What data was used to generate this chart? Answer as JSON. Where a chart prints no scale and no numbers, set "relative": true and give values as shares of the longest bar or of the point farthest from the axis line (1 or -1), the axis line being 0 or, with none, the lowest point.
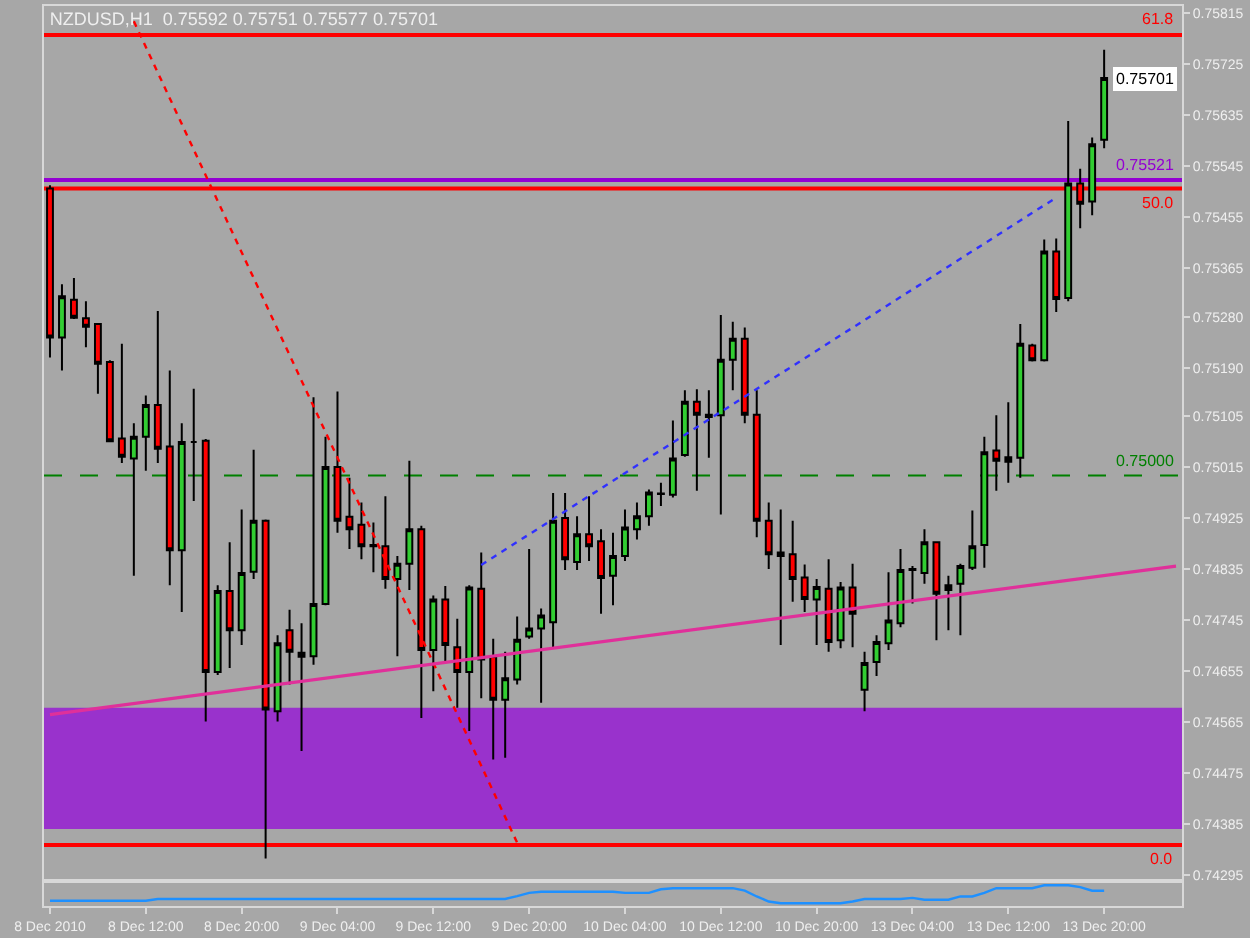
{
  "chart_data": [
    {
      "type": "candlestick",
      "title": "NZDUSD,H1  0.75592 0.75751 0.75577 0.75701",
      "categories": [
        "8 Dec 2010",
        null,
        null,
        null,
        null,
        null,
        null,
        null,
        "8 Dec 12:00",
        null,
        null,
        null,
        null,
        null,
        null,
        null,
        "8 Dec 20:00",
        null,
        null,
        null,
        null,
        null,
        null,
        null,
        "9 Dec 04:00",
        null,
        null,
        null,
        null,
        null,
        null,
        null,
        "9 Dec 12:00",
        null,
        null,
        null,
        null,
        null,
        null,
        null,
        "9 Dec 20:00",
        null,
        null,
        null,
        null,
        null,
        null,
        null,
        "10 Dec 04:00",
        null,
        null,
        null,
        null,
        null,
        null,
        null,
        "10 Dec 12:00",
        null,
        null,
        null,
        null,
        null,
        null,
        null,
        "10 Dec 20:00",
        null,
        null,
        null,
        null,
        null,
        null,
        null,
        "13 Dec 04:00",
        null,
        null,
        null,
        null,
        null,
        null,
        null,
        "13 Dec 12:00",
        null,
        null,
        null,
        null,
        null,
        null,
        null,
        "13 Dec 20:00",
        null,
        null,
        null,
        null,
        null,
        null
      ],
      "ohlc": [
        [
          0.75506,
          0.75512,
          0.75208,
          0.75243
        ],
        [
          0.75243,
          0.75337,
          0.75185,
          0.75316
        ],
        [
          0.7531,
          0.75348,
          0.75276,
          0.75278
        ],
        [
          0.75277,
          0.75307,
          0.75226,
          0.75262
        ],
        [
          0.75267,
          0.75269,
          0.75144,
          0.75197
        ],
        [
          0.752,
          0.75203,
          0.75059,
          0.7506
        ],
        [
          0.75065,
          0.75232,
          0.75022,
          0.75033
        ],
        [
          0.7503,
          0.75092,
          0.74823,
          0.75068
        ],
        [
          0.75068,
          0.75141,
          0.75008,
          0.75124
        ],
        [
          0.75124,
          0.7529,
          0.75022,
          0.75047
        ],
        [
          0.75051,
          0.75185,
          0.74806,
          0.74868
        ],
        [
          0.74868,
          0.75092,
          0.74759,
          0.75059
        ],
        [
          0.75059,
          0.75153,
          0.74955,
          0.75059
        ],
        [
          0.75061,
          0.75064,
          0.74566,
          0.74653
        ],
        [
          0.74653,
          0.74806,
          0.74648,
          0.74796
        ],
        [
          0.74796,
          0.74882,
          0.7466,
          0.74727
        ],
        [
          0.74727,
          0.7494,
          0.74701,
          0.74828
        ],
        [
          0.7483,
          0.75045,
          0.74817,
          0.7492
        ],
        [
          0.7492,
          0.74922,
          0.74324,
          0.74587
        ],
        [
          0.74584,
          0.74718,
          0.74566,
          0.74704
        ],
        [
          0.74727,
          0.74763,
          0.74631,
          0.74689
        ],
        [
          0.74687,
          0.74739,
          0.74514,
          0.7468
        ],
        [
          0.74681,
          0.75138,
          0.74666,
          0.74773
        ],
        [
          0.74773,
          0.75068,
          0.74771,
          0.75015
        ],
        [
          0.75015,
          0.75148,
          0.74899,
          0.7492
        ],
        [
          0.74927,
          0.74996,
          0.7487,
          0.74905
        ],
        [
          0.74913,
          0.74952,
          0.74852,
          0.74875
        ],
        [
          0.74877,
          0.74917,
          0.74829,
          0.74875
        ],
        [
          0.74875,
          0.74963,
          0.748,
          0.74817
        ],
        [
          0.74817,
          0.74858,
          0.74681,
          0.74844
        ],
        [
          0.74844,
          0.75026,
          0.74798,
          0.74905
        ],
        [
          0.74905,
          0.74911,
          0.74572,
          0.74692
        ],
        [
          0.74692,
          0.74788,
          0.74619,
          0.74781
        ],
        [
          0.74781,
          0.74805,
          0.74671,
          0.74701
        ],
        [
          0.74697,
          0.74747,
          0.7459,
          0.74653
        ],
        [
          0.74653,
          0.74806,
          0.74549,
          0.74802
        ],
        [
          0.748,
          0.74864,
          0.74607,
          0.74675
        ],
        [
          0.7468,
          0.74712,
          0.74499,
          0.74604
        ],
        [
          0.74604,
          0.74689,
          0.74502,
          0.74642
        ],
        [
          0.7464,
          0.74751,
          0.74631,
          0.7471
        ],
        [
          0.74716,
          0.7487,
          0.74712,
          0.7473
        ],
        [
          0.7473,
          0.74765,
          0.74599,
          0.74753
        ],
        [
          0.74741,
          0.74969,
          0.74695,
          0.7492
        ],
        [
          0.74925,
          0.74969,
          0.74833,
          0.74852
        ],
        [
          0.74847,
          0.74928,
          0.74833,
          0.74896
        ],
        [
          0.74896,
          0.74963,
          0.74849,
          0.74875
        ],
        [
          0.74884,
          0.74905,
          0.74756,
          0.74819
        ],
        [
          0.74823,
          0.74899,
          0.74771,
          0.74858
        ],
        [
          0.74858,
          0.7494,
          0.74849,
          0.74908
        ],
        [
          0.74905,
          0.74952,
          0.74887,
          0.74928
        ],
        [
          0.74928,
          0.74975,
          0.74911,
          0.7497
        ],
        [
          0.74967,
          0.74987,
          0.74946,
          0.74968
        ],
        [
          0.74966,
          0.75097,
          0.74961,
          0.7503
        ],
        [
          0.75036,
          0.7515,
          0.75033,
          0.7513
        ],
        [
          0.7513,
          0.75152,
          0.74973,
          0.75107
        ],
        [
          0.75107,
          0.7515,
          0.75031,
          0.75103
        ],
        [
          0.75106,
          0.75283,
          0.74931,
          0.75204
        ],
        [
          0.75204,
          0.75271,
          0.7515,
          0.75241
        ],
        [
          0.75241,
          0.75261,
          0.75092,
          0.75107
        ],
        [
          0.75107,
          0.7515,
          0.74891,
          0.7492
        ],
        [
          0.7492,
          0.74952,
          0.74835,
          0.74861
        ],
        [
          0.74864,
          0.7494,
          0.74701,
          0.74858
        ],
        [
          0.74861,
          0.7492,
          0.74777,
          0.74817
        ],
        [
          0.7482,
          0.74843,
          0.74759,
          0.74782
        ],
        [
          0.74781,
          0.74817,
          0.74701,
          0.74803
        ],
        [
          0.748,
          0.74852,
          0.74689,
          0.74706
        ],
        [
          0.74709,
          0.74812,
          0.74695,
          0.74802
        ],
        [
          0.74802,
          0.74844,
          0.74697,
          0.74756
        ],
        [
          0.74622,
          0.74689,
          0.74584,
          0.74669
        ],
        [
          0.74671,
          0.74718,
          0.74646,
          0.74706
        ],
        [
          0.74704,
          0.74829,
          0.74692,
          0.74744
        ],
        [
          0.74739,
          0.7487,
          0.74732,
          0.74833
        ],
        [
          0.74833,
          0.7484,
          0.74774,
          0.74835
        ],
        [
          0.74828,
          0.74905,
          0.74809,
          0.74882
        ],
        [
          0.74882,
          0.74884,
          0.74709,
          0.74791
        ],
        [
          0.74798,
          0.74823,
          0.74727,
          0.74806
        ],
        [
          0.74809,
          0.74844,
          0.74718,
          0.7484
        ],
        [
          0.74837,
          0.74938,
          0.74833,
          0.74875
        ],
        [
          0.74877,
          0.75068,
          0.74837,
          0.75041
        ],
        [
          0.75044,
          0.75106,
          0.74973,
          0.75026
        ],
        [
          0.75024,
          0.75129,
          0.74987,
          0.75032
        ],
        [
          0.75031,
          0.75267,
          0.74996,
          0.75232
        ],
        [
          0.75229,
          0.75232,
          0.75201,
          0.75203
        ],
        [
          0.75203,
          0.75416,
          0.75201,
          0.75395
        ],
        [
          0.75395,
          0.75418,
          0.75288,
          0.75311
        ],
        [
          0.75313,
          0.75625,
          0.75307,
          0.75515
        ],
        [
          0.75515,
          0.75541,
          0.75436,
          0.75479
        ],
        [
          0.75483,
          0.75596,
          0.75459,
          0.75584
        ],
        [
          0.75592,
          0.75751,
          0.75577,
          0.75701
        ],
        null,
        null,
        null,
        null,
        null,
        null
      ],
      "colors": [
        "#ff0000",
        "#32cd32",
        "#ff0000",
        "#ff0000",
        "#ff0000",
        "#ff0000",
        "#ff0000",
        "#32cd32",
        "#32cd32",
        "#ff0000",
        "#ff0000",
        "#32cd32",
        "#000000",
        "#ff0000",
        "#32cd32",
        "#ff0000",
        "#32cd32",
        "#32cd32",
        "#ff0000",
        "#32cd32",
        "#ff0000",
        "#000000",
        "#32cd32",
        "#32cd32",
        "#ff0000",
        "#ff0000",
        "#ff0000",
        "#000000",
        "#ff0000",
        "#32cd32",
        "#32cd32",
        "#ff0000",
        "#32cd32",
        "#ff0000",
        "#ff0000",
        "#32cd32",
        "#ff0000",
        "#ff0000",
        "#32cd32",
        "#32cd32",
        "#32cd32",
        "#32cd32",
        "#32cd32",
        "#ff0000",
        "#32cd32",
        "#ff0000",
        "#ff0000",
        "#32cd32",
        "#32cd32",
        "#32cd32",
        "#32cd32",
        "#000000",
        "#32cd32",
        "#32cd32",
        "#ff0000",
        "#000000",
        "#32cd32",
        "#32cd32",
        "#ff0000",
        "#ff0000",
        "#ff0000",
        "#000000",
        "#ff0000",
        "#ff0000",
        "#32cd32",
        "#ff0000",
        "#32cd32",
        "#ff0000",
        "#32cd32",
        "#32cd32",
        "#32cd32",
        "#32cd32",
        "#000000",
        "#32cd32",
        "#ff0000",
        "#000000",
        "#32cd32",
        "#32cd32",
        "#32cd32",
        "#ff0000",
        "#000000",
        "#32cd32",
        "#ff0000",
        "#32cd32",
        "#ff0000",
        "#32cd32",
        "#ff0000",
        "#32cd32",
        "#32cd32",
        null,
        null,
        null,
        null,
        null,
        null
      ],
      "series": [
        {
          "type": "line",
          "color": "#ff0000",
          "line_style": "dotted",
          "values": [
            null,
            null,
            null,
            null,
            null,
            null,
            null,
            0.75801,
            null,
            null,
            null,
            null,
            null,
            null,
            null,
            null,
            null,
            null,
            null,
            null,
            null,
            null,
            null,
            null,
            null,
            null,
            null,
            null,
            null,
            null,
            null,
            null,
            null,
            null,
            null,
            null,
            null,
            null,
            null,
            0.74352,
            null,
            null,
            null,
            null,
            null,
            null,
            null,
            null,
            null,
            null,
            null,
            null,
            null,
            null,
            null,
            null,
            null,
            null,
            null,
            null,
            null,
            null,
            null,
            null,
            null,
            null,
            null,
            null,
            null,
            null,
            null,
            null,
            null,
            null,
            null,
            null,
            null,
            null,
            null,
            null,
            null,
            null,
            null,
            null,
            null,
            null,
            null,
            null,
            null,
            null,
            null,
            null,
            null,
            null,
            null
          ]
        },
        {
          "type": "line",
          "color": "#3030ff",
          "line_style": "dotted",
          "values": [
            null,
            null,
            null,
            null,
            null,
            null,
            null,
            null,
            null,
            null,
            null,
            null,
            null,
            null,
            null,
            null,
            null,
            null,
            null,
            null,
            null,
            null,
            null,
            null,
            null,
            null,
            null,
            null,
            null,
            null,
            null,
            null,
            null,
            null,
            null,
            null,
            0.74842,
            null,
            null,
            null,
            null,
            null,
            null,
            null,
            null,
            null,
            null,
            null,
            null,
            null,
            null,
            null,
            null,
            null,
            null,
            null,
            null,
            null,
            null,
            null,
            null,
            null,
            null,
            null,
            null,
            null,
            null,
            null,
            null,
            null,
            null,
            null,
            null,
            null,
            null,
            null,
            null,
            null,
            null,
            null,
            null,
            null,
            null,
            null,
            0.7549,
            null,
            null,
            null,
            null,
            null,
            null,
            null,
            null,
            null,
            null
          ]
        },
        {
          "type": "line",
          "color": "#e0309a",
          "line_style": "solid",
          "values": [
            0.74578,
            null,
            null,
            null,
            null,
            null,
            null,
            null,
            null,
            null,
            null,
            null,
            null,
            null,
            null,
            null,
            null,
            null,
            null,
            null,
            null,
            null,
            null,
            null,
            null,
            null,
            null,
            null,
            null,
            null,
            null,
            null,
            null,
            null,
            null,
            null,
            null,
            null,
            null,
            null,
            null,
            null,
            null,
            null,
            null,
            null,
            null,
            null,
            null,
            null,
            null,
            null,
            null,
            null,
            null,
            null,
            null,
            null,
            null,
            null,
            null,
            null,
            null,
            null,
            null,
            null,
            null,
            null,
            null,
            null,
            null,
            null,
            null,
            null,
            null,
            null,
            null,
            null,
            null,
            null,
            null,
            null,
            null,
            null,
            null,
            null,
            null,
            null,
            null,
            null,
            null,
            null,
            null,
            null,
            0.7484
          ]
        }
      ],
      "ref_lines": [
        {
          "axis": "y",
          "value": 0.75777,
          "color": "#ff0000",
          "line_style": "solid"
        },
        {
          "axis": "y",
          "value": 0.75506,
          "color": "#ff0000",
          "line_style": "solid"
        },
        {
          "axis": "y",
          "value": 0.74348,
          "color": "#ff0000",
          "line_style": "solid"
        },
        {
          "axis": "y",
          "value": 0.75521,
          "label": "0.75521",
          "color": "#9400d3",
          "line_style": "solid"
        },
        {
          "axis": "y",
          "value": 0.75,
          "label": "0.75000",
          "color": "#008000",
          "line_style": "dashed"
        }
      ],
      "bands": [
        {
          "axis": "y",
          "from": 0.74376,
          "to": 0.7459,
          "color": "#9932cc"
        }
      ],
      "annotations": [
        {
          "text": "61.8",
          "y": 0.75777
        },
        {
          "text": "50.0",
          "y": 0.75506
        },
        {
          "text": "0.0",
          "y": 0.74348
        },
        {
          "text": "0.75701",
          "y": 0.75701
        }
      ],
      "ylim": [
        0.74288,
        0.75828
      ],
      "yticks": [
        0.75815,
        0.75725,
        0.75635,
        0.75545,
        0.75455,
        0.75365,
        {
          "value": 0.7528,
          "label": "0.75280"
        },
        {
          "value": 0.7519,
          "label": "0.75190"
        },
        0.75105,
        0.75015,
        0.74925,
        0.74835,
        0.74745,
        0.74655,
        0.74565,
        0.74475,
        0.74385,
        0.74295
      ]
    },
    {
      "type": "line",
      "relative": true,
      "color": "#1e90ff",
      "categories": [
        null,
        null,
        null,
        null,
        null,
        null,
        null,
        null,
        null,
        null,
        null,
        null,
        null,
        null,
        null,
        null,
        null,
        null,
        null,
        null,
        null,
        null,
        null,
        null,
        null,
        null,
        null,
        null,
        null,
        null,
        null,
        null,
        null,
        null,
        null,
        null,
        null,
        null,
        null,
        null,
        null,
        null,
        null,
        null,
        null,
        null,
        null,
        null,
        null,
        null,
        null,
        null,
        null,
        null,
        null,
        null,
        null,
        null,
        null,
        null,
        null,
        null,
        null,
        null,
        null,
        null,
        null,
        null,
        null,
        null,
        null,
        null,
        null,
        null,
        null,
        null,
        null,
        null,
        null,
        null,
        null,
        null,
        null,
        null,
        null,
        null,
        null,
        null,
        null,
        null,
        null,
        null,
        null,
        null,
        null
      ],
      "values": [
        0.14,
        0.14,
        0.14,
        0.14,
        0.14,
        0.14,
        0.14,
        0.14,
        0.14,
        0.24,
        0.24,
        0.24,
        0.24,
        0.24,
        0.24,
        0.24,
        0.24,
        0.24,
        0.24,
        0.24,
        0.24,
        0.24,
        0.24,
        0.24,
        0.24,
        0.24,
        0.24,
        0.24,
        0.24,
        0.24,
        0.24,
        0.24,
        0.24,
        0.24,
        0.24,
        0.24,
        0.24,
        0.24,
        0.24,
        0.4,
        0.58,
        0.64,
        0.64,
        0.64,
        0.64,
        0.64,
        0.64,
        0.64,
        0.58,
        0.58,
        0.58,
        0.78,
        0.84,
        0.84,
        0.84,
        0.84,
        0.84,
        0.84,
        0.7,
        0.38,
        0.1,
        0,
        0,
        0,
        0,
        0,
        0,
        0.1,
        0.24,
        0.24,
        0.24,
        0.24,
        0.3,
        0.2,
        0.2,
        0.2,
        0.38,
        0.38,
        0.58,
        0.84,
        0.84,
        0.84,
        0.84,
        1,
        1,
        1,
        0.9,
        0.7,
        0.7,
        null,
        null,
        null,
        null,
        null,
        null
      ]
    }
  ]
}
